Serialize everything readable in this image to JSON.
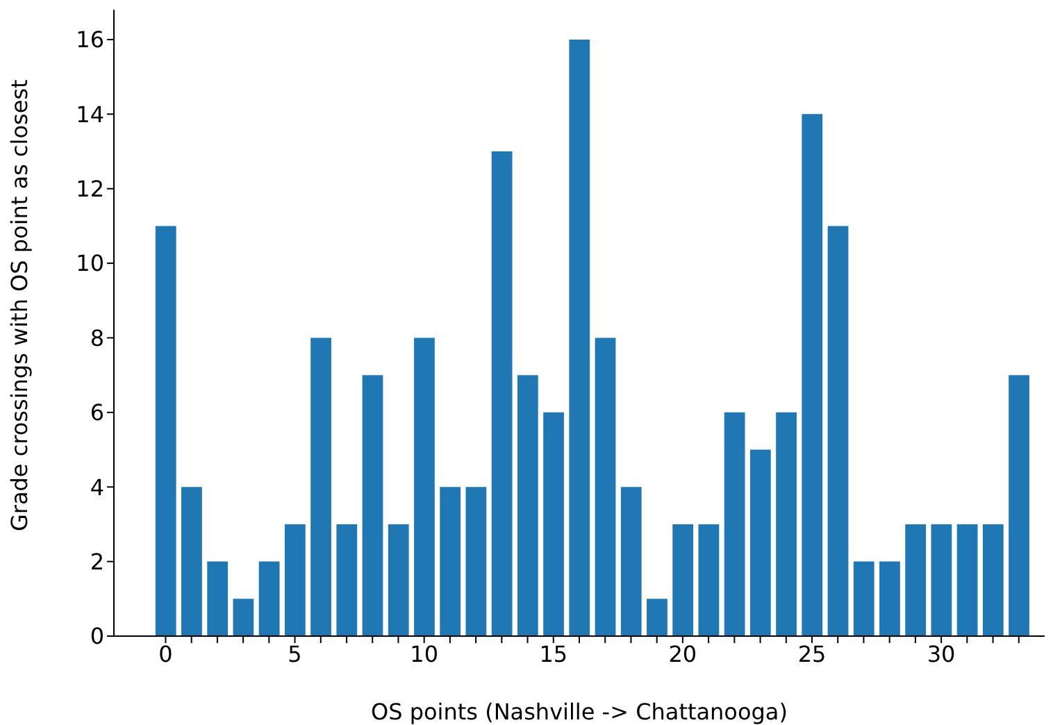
{
  "chart_data": {
    "type": "bar",
    "xlabel": "OS points (Nashville -> Chattanooga)",
    "ylabel": "Grade crossings with OS point as closest",
    "x": [
      0,
      1,
      2,
      3,
      4,
      5,
      6,
      7,
      8,
      9,
      10,
      11,
      12,
      13,
      14,
      15,
      16,
      17,
      18,
      19,
      20,
      21,
      22,
      23,
      24,
      25,
      26,
      27,
      28,
      29,
      30,
      31,
      32,
      33
    ],
    "values": [
      11,
      4,
      2,
      1,
      2,
      3,
      8,
      3,
      7,
      3,
      8,
      4,
      4,
      13,
      7,
      6,
      16,
      8,
      4,
      1,
      3,
      3,
      6,
      5,
      6,
      14,
      11,
      2,
      2,
      3,
      3,
      3,
      3,
      7
    ],
    "color": "#1f77b4",
    "xlim": [
      -2,
      34
    ],
    "xticks": [
      0,
      {
        "value": 1,
        "label": null
      },
      {
        "value": 2,
        "label": null
      },
      {
        "value": 3,
        "label": null
      },
      {
        "value": 4,
        "label": null
      },
      5,
      {
        "value": 6,
        "label": null
      },
      {
        "value": 7,
        "label": null
      },
      {
        "value": 8,
        "label": null
      },
      {
        "value": 9,
        "label": null
      },
      10,
      {
        "value": 11,
        "label": null
      },
      {
        "value": 12,
        "label": null
      },
      {
        "value": 13,
        "label": null
      },
      {
        "value": 14,
        "label": null
      },
      15,
      {
        "value": 16,
        "label": null
      },
      {
        "value": 17,
        "label": null
      },
      {
        "value": 18,
        "label": null
      },
      {
        "value": 19,
        "label": null
      },
      20,
      {
        "value": 21,
        "label": null
      },
      {
        "value": 22,
        "label": null
      },
      {
        "value": 23,
        "label": null
      },
      {
        "value": 24,
        "label": null
      },
      25,
      {
        "value": 26,
        "label": null
      },
      {
        "value": 27,
        "label": null
      },
      {
        "value": 28,
        "label": null
      },
      {
        "value": 29,
        "label": null
      },
      30,
      {
        "value": 31,
        "label": null
      },
      {
        "value": 32,
        "label": null
      },
      {
        "value": 33,
        "label": null
      }
    ],
    "ylim": [
      0,
      16.8
    ],
    "yticks": [
      0,
      2,
      4,
      6,
      8,
      10,
      12,
      14,
      16
    ],
    "grid": false,
    "legend": false
  }
}
